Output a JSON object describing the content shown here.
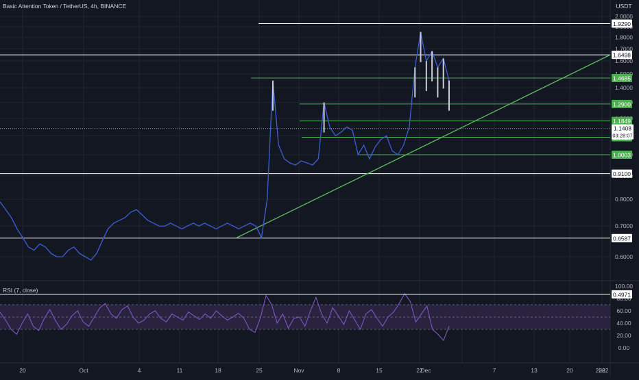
{
  "header": {
    "title": "Basic Attention Token / TetherUS, 4h, BINANCE",
    "currency": "USDT"
  },
  "colors": {
    "background": "#131722",
    "grid": "#1f2433",
    "axis_text": "#b2b5be",
    "price_line": "#3d5fd6",
    "candle_up": "#c9cdd6",
    "white_levels": "#ffffff",
    "green_levels": "#4caf50",
    "trendline": "#5cb85c",
    "rsi_line": "#7e57c2",
    "rsi_band": "#2a2340"
  },
  "chart_data": [
    {
      "type": "line",
      "title": "Basic Attention Token / TetherUS, 4h, BINANCE",
      "y_axis_label": "USDT",
      "y_scale": "log",
      "ylim": [
        0.47,
        2.03
      ],
      "x_ticks": [
        "20",
        "Oct",
        "4",
        "11",
        "18",
        "25",
        "Nov",
        "8",
        "15",
        "22",
        "29",
        "Dec",
        "7",
        "13",
        "20",
        "26",
        "2022"
      ],
      "y_ticks": [
        "2.0000",
        "1.9000",
        "1.8000",
        "1.7000",
        "1.6000",
        "1.5000",
        "1.4000",
        "1.3000",
        "1.2000",
        "1.1000",
        "1.0000",
        "0.9000",
        "0.8000",
        "0.7000",
        "0.6000"
      ],
      "last_price": {
        "value": "1.1408",
        "countdown": "03:28:07"
      },
      "horizontal_levels_white": [
        "1.9290",
        "1.6498",
        "0.9100",
        "0.6587",
        "0.4971"
      ],
      "horizontal_levels_green": [
        "1.4685",
        "1.2900",
        "1.1849",
        "1.0916",
        "1.0003"
      ],
      "trendline": {
        "from": [
          "Oct 27",
          0.6587
        ],
        "to": [
          "Dec 28",
          1.65
        ]
      },
      "price_series": {
        "x_days": [
          0,
          1,
          2,
          3,
          4,
          5,
          6,
          7,
          8,
          9,
          10,
          11,
          12,
          13,
          14,
          15,
          16,
          17,
          18,
          19,
          20,
          21,
          22,
          23,
          24,
          25,
          26,
          27,
          28,
          29,
          30,
          31,
          32,
          33,
          34,
          35,
          36,
          37,
          38,
          39,
          40,
          41,
          42,
          43,
          44,
          45,
          46,
          47,
          48,
          49,
          50,
          51,
          52,
          53,
          54,
          55,
          56,
          57,
          58,
          59,
          60,
          61,
          62,
          63,
          64,
          65,
          66,
          67,
          68,
          69,
          70,
          71,
          72,
          73,
          74,
          75,
          76,
          77,
          78,
          79
        ],
        "close": [
          0.79,
          0.76,
          0.73,
          0.69,
          0.66,
          0.63,
          0.62,
          0.64,
          0.63,
          0.61,
          0.6,
          0.6,
          0.62,
          0.63,
          0.61,
          0.6,
          0.59,
          0.61,
          0.65,
          0.69,
          0.71,
          0.72,
          0.73,
          0.75,
          0.76,
          0.74,
          0.72,
          0.71,
          0.7,
          0.7,
          0.71,
          0.7,
          0.69,
          0.7,
          0.71,
          0.7,
          0.71,
          0.7,
          0.69,
          0.7,
          0.71,
          0.7,
          0.69,
          0.7,
          0.71,
          0.7,
          0.66,
          0.8,
          1.45,
          1.05,
          0.98,
          0.96,
          0.95,
          0.97,
          0.96,
          0.95,
          0.98,
          1.3,
          1.15,
          1.1,
          1.12,
          1.15,
          1.13,
          1.0,
          1.05,
          0.98,
          1.04,
          1.08,
          1.1,
          1.02,
          1.0,
          1.05,
          1.15,
          1.55,
          1.85,
          1.6,
          1.68,
          1.55,
          1.62,
          1.45
        ]
      }
    },
    {
      "type": "line",
      "title": "RSI (7, close)",
      "ylim": [
        0,
        100
      ],
      "y_ticks": [
        "100.00",
        "80.00",
        "60.00",
        "40.00",
        "20.00",
        "0.00"
      ],
      "overbought": 70,
      "oversold": 30,
      "values": [
        58,
        45,
        30,
        22,
        40,
        55,
        35,
        28,
        48,
        62,
        44,
        30,
        38,
        52,
        60,
        42,
        35,
        50,
        65,
        72,
        55,
        48,
        62,
        68,
        50,
        40,
        45,
        55,
        60,
        48,
        42,
        55,
        50,
        45,
        58,
        52,
        46,
        55,
        48,
        60,
        52,
        45,
        50,
        56,
        48,
        30,
        25,
        50,
        85,
        70,
        40,
        55,
        32,
        48,
        50,
        35,
        60,
        82,
        55,
        40,
        65,
        52,
        38,
        60,
        45,
        30,
        55,
        62,
        48,
        35,
        50,
        58,
        72,
        88,
        75,
        42,
        55,
        68,
        30,
        22,
        12,
        35
      ]
    }
  ]
}
